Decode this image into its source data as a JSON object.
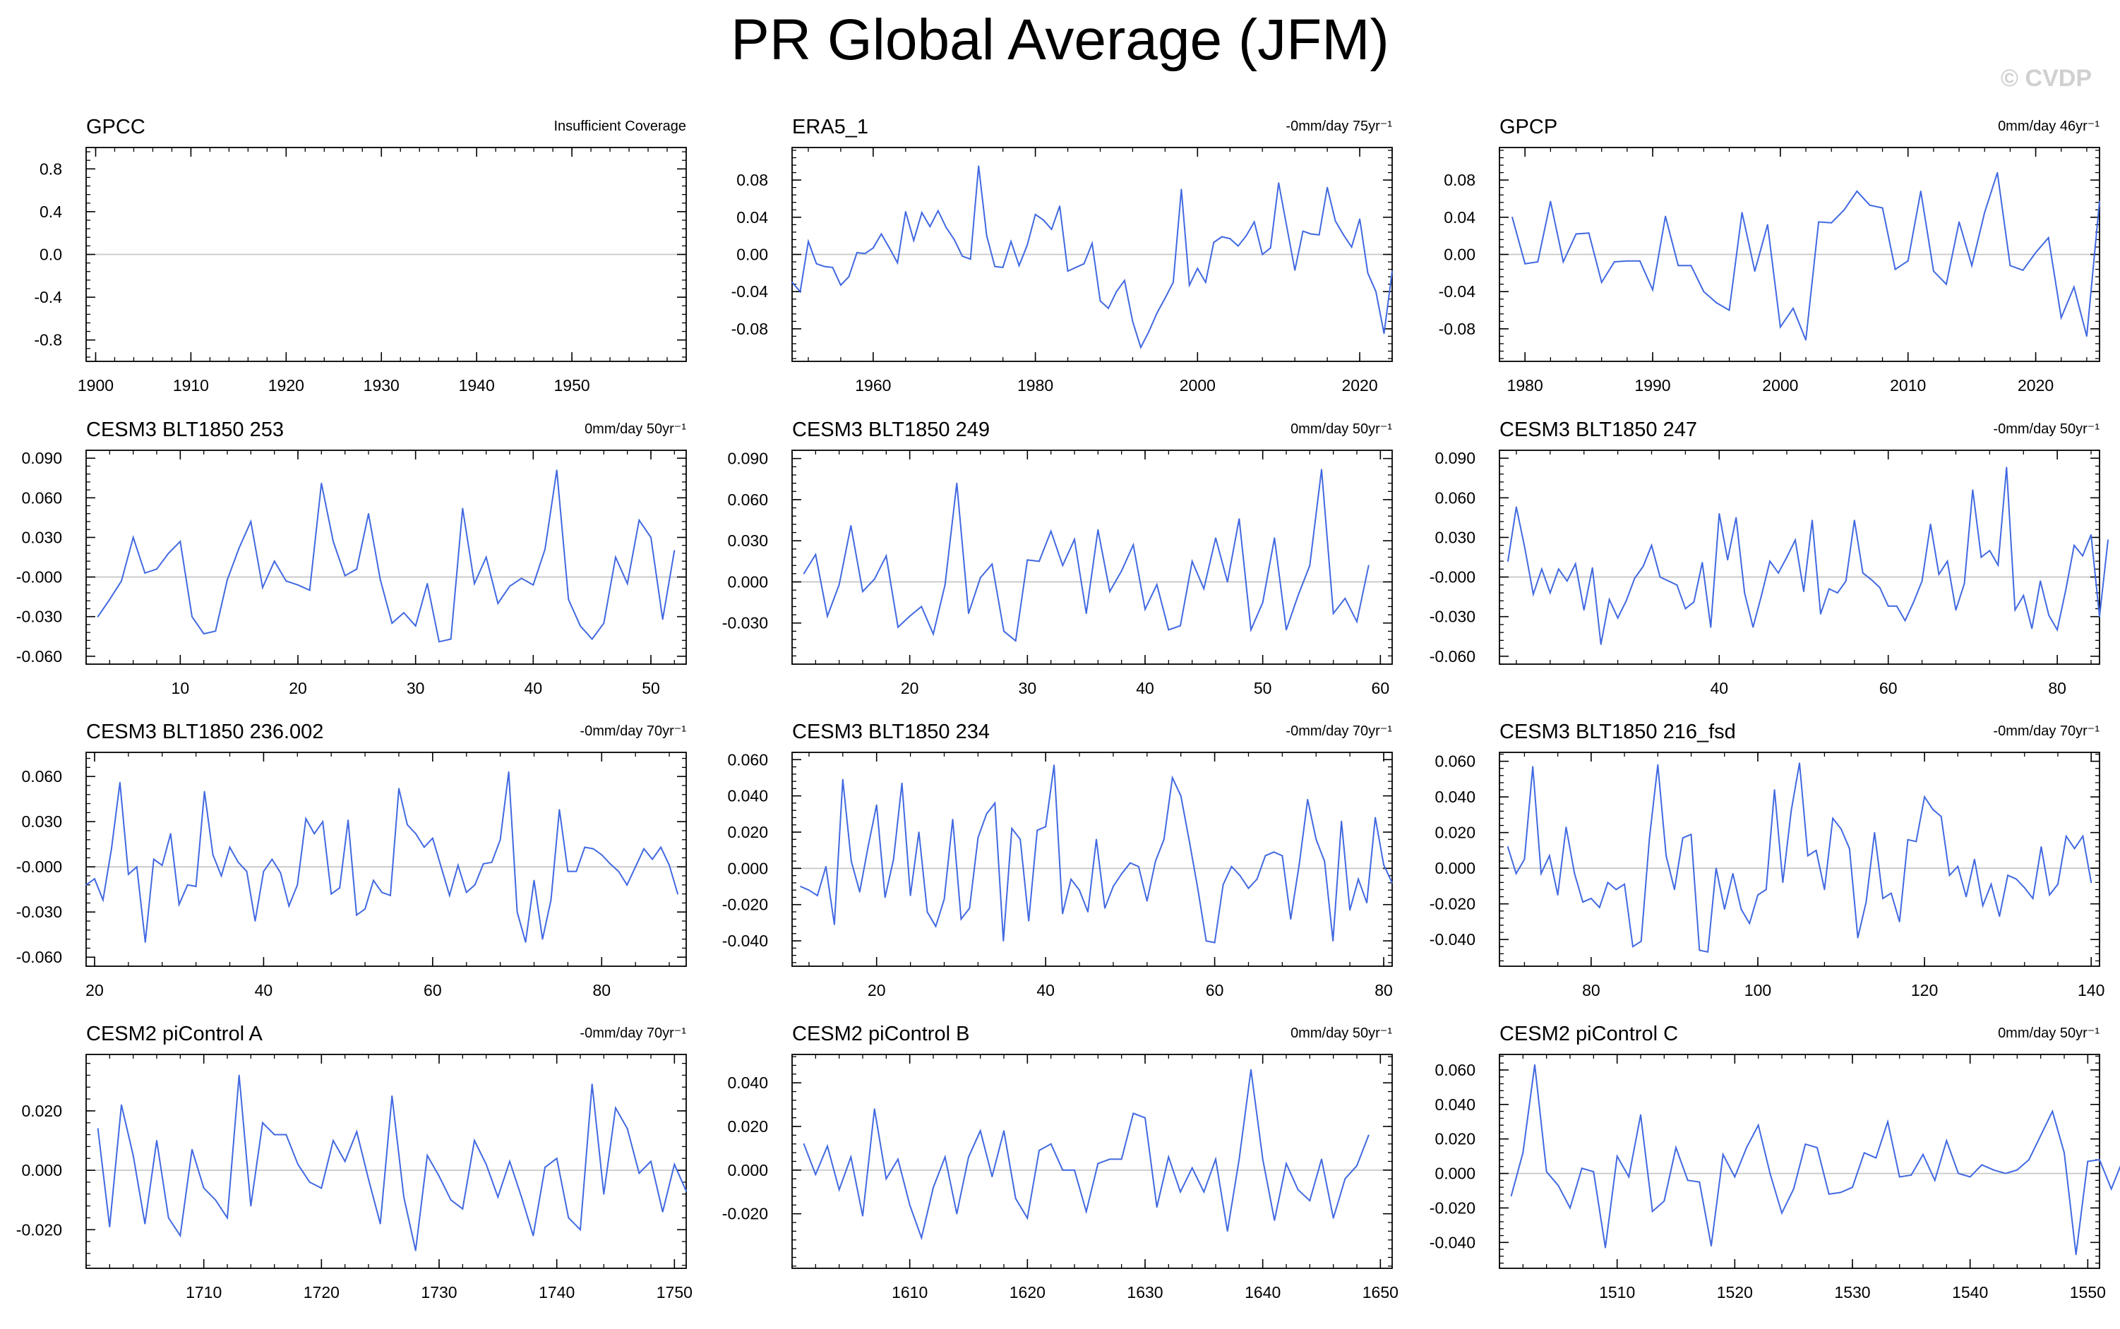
{
  "title": "PR Global Average (JFM)",
  "watermark": "© CVDP",
  "line_color": "#4169e1",
  "chart_data": [
    {
      "type": "line",
      "name": "GPCC",
      "trend": "Insufficient Coverage",
      "xlim": [
        1899,
        1962
      ],
      "xticks": [
        1900,
        1910,
        1920,
        1930,
        1940,
        1950
      ],
      "ylim": [
        -1,
        1
      ],
      "yticks": [
        -0.8,
        -0.4,
        0.0,
        0.4,
        0.8
      ],
      "ytick_labels": [
        "-0.8",
        "-0.4",
        "0.0",
        "0.4",
        "0.8"
      ],
      "x_start": 1900,
      "values": []
    },
    {
      "type": "line",
      "name": "ERA5_1",
      "trend": "-0mm/day 75yr⁻¹",
      "xlim": [
        1950,
        2024
      ],
      "xticks": [
        1960,
        1980,
        2000,
        2020
      ],
      "ylim": [
        -0.115,
        0.115
      ],
      "yticks": [
        -0.08,
        -0.04,
        0.0,
        0.04,
        0.08
      ],
      "ytick_labels": [
        "-0.08",
        "-0.04",
        "0.00",
        "0.04",
        "0.08"
      ],
      "x_start": 1950,
      "values": [
        -0.03,
        -0.04,
        0.014,
        -0.01,
        -0.013,
        -0.014,
        -0.033,
        -0.024,
        0.002,
        0.001,
        0.007,
        0.022,
        0.007,
        -0.009,
        0.046,
        0.015,
        0.045,
        0.03,
        0.047,
        0.029,
        0.016,
        -0.002,
        -0.005,
        0.095,
        0.02,
        -0.013,
        -0.014,
        0.014,
        -0.012,
        0.01,
        0.043,
        0.037,
        0.027,
        0.052,
        -0.018,
        -0.014,
        -0.01,
        0.012,
        -0.05,
        -0.058,
        -0.04,
        -0.028,
        -0.072,
        -0.1,
        -0.083,
        -0.063,
        -0.047,
        -0.03,
        0.07,
        -0.033,
        -0.015,
        -0.03,
        0.013,
        0.019,
        0.017,
        0.009,
        0.02,
        0.035,
        0.0,
        0.007,
        0.077,
        0.03,
        -0.017,
        0.025,
        0.022,
        0.021,
        0.072,
        0.036,
        0.021,
        0.008,
        0.038,
        -0.02,
        -0.04,
        -0.085,
        -0.018
      ]
    },
    {
      "type": "line",
      "name": "GPCP",
      "trend": "0mm/day 46yr⁻¹",
      "xlim": [
        1978,
        2025
      ],
      "xticks": [
        1980,
        1990,
        2000,
        2010,
        2020
      ],
      "ylim": [
        -0.115,
        0.115
      ],
      "yticks": [
        -0.08,
        -0.04,
        0.0,
        0.04,
        0.08
      ],
      "ytick_labels": [
        "-0.08",
        "-0.04",
        "0.00",
        "0.04",
        "0.08"
      ],
      "x_start": 1979,
      "values": [
        0.04,
        -0.01,
        -0.008,
        0.057,
        -0.008,
        0.022,
        0.023,
        -0.03,
        -0.008,
        -0.007,
        -0.007,
        -0.038,
        0.041,
        -0.012,
        -0.012,
        -0.04,
        -0.052,
        -0.06,
        0.045,
        -0.018,
        0.032,
        -0.078,
        -0.058,
        -0.092,
        0.035,
        0.034,
        0.048,
        0.068,
        0.053,
        0.05,
        -0.016,
        -0.007,
        0.068,
        -0.018,
        -0.032,
        0.035,
        -0.012,
        0.045,
        0.088,
        -0.012,
        -0.017,
        0.002,
        0.018,
        -0.068,
        -0.035,
        -0.088,
        0.057
      ]
    },
    {
      "type": "line",
      "name": "CESM3 BLT1850 253",
      "trend": "0mm/day 50yr⁻¹",
      "xlim": [
        2,
        53
      ],
      "xticks": [
        10,
        20,
        30,
        40,
        50
      ],
      "ylim": [
        -0.066,
        0.096
      ],
      "yticks": [
        -0.06,
        -0.03,
        0.0,
        0.03,
        0.06,
        0.09
      ],
      "ytick_labels": [
        "-0.060",
        "-0.030",
        "-0.000",
        "0.030",
        "0.060",
        "0.090"
      ],
      "x_start": 3,
      "values": [
        -0.03,
        -0.017,
        -0.003,
        0.03,
        0.003,
        0.006,
        0.018,
        0.027,
        -0.03,
        -0.043,
        -0.041,
        -0.002,
        0.022,
        0.042,
        -0.008,
        0.012,
        -0.003,
        -0.006,
        -0.01,
        0.071,
        0.027,
        0.001,
        0.006,
        0.048,
        -0.002,
        -0.035,
        -0.027,
        -0.037,
        -0.005,
        -0.049,
        -0.047,
        0.052,
        -0.005,
        0.015,
        -0.02,
        -0.007,
        -0.001,
        -0.006,
        0.021,
        0.081,
        -0.017,
        -0.037,
        -0.047,
        -0.035,
        0.015,
        -0.005,
        0.043,
        0.03,
        -0.032,
        0.02
      ]
    },
    {
      "type": "line",
      "name": "CESM3 BLT1850 249",
      "trend": "0mm/day 50yr⁻¹",
      "xlim": [
        10,
        61
      ],
      "xticks": [
        20,
        30,
        40,
        50,
        60
      ],
      "ylim": [
        -0.06,
        0.096
      ],
      "yticks": [
        -0.03,
        0.0,
        0.03,
        0.06,
        0.09
      ],
      "ytick_labels": [
        "-0.030",
        "0.000",
        "0.030",
        "0.060",
        "0.090"
      ],
      "x_start": 11,
      "values": [
        0.006,
        0.02,
        -0.025,
        -0.002,
        0.041,
        -0.007,
        0.002,
        0.019,
        -0.033,
        -0.025,
        -0.018,
        -0.038,
        -0.002,
        0.072,
        -0.023,
        0.003,
        0.013,
        -0.036,
        -0.043,
        0.016,
        0.015,
        0.037,
        0.012,
        0.031,
        -0.023,
        0.038,
        -0.007,
        0.008,
        0.027,
        -0.02,
        -0.002,
        -0.035,
        -0.032,
        0.015,
        -0.005,
        0.032,
        0.0,
        0.046,
        -0.035,
        -0.015,
        0.032,
        -0.035,
        -0.01,
        0.012,
        0.082,
        -0.023,
        -0.012,
        -0.029,
        0.012
      ]
    },
    {
      "type": "line",
      "name": "CESM3 BLT1850 247",
      "trend": "-0mm/day 50yr⁻¹",
      "xlim": [
        14,
        85
      ],
      "xticks": [
        40,
        60,
        80
      ],
      "ylim": [
        -0.066,
        0.096
      ],
      "yticks": [
        -0.06,
        -0.03,
        0.0,
        0.03,
        0.06,
        0.09
      ],
      "ytick_labels": [
        "-0.060",
        "-0.030",
        "-0.000",
        "0.030",
        "0.060",
        "0.090"
      ],
      "x_start": 15,
      "values": [
        0.012,
        0.053,
        0.022,
        -0.013,
        0.006,
        -0.012,
        0.006,
        -0.003,
        0.01,
        -0.025,
        0.007,
        -0.051,
        -0.017,
        -0.031,
        -0.018,
        -0.001,
        0.008,
        0.024,
        0.0,
        -0.003,
        -0.006,
        -0.024,
        -0.019,
        0.011,
        -0.038,
        0.048,
        0.013,
        0.045,
        -0.012,
        -0.038,
        -0.014,
        0.012,
        0.003,
        0.015,
        0.028,
        -0.011,
        0.043,
        -0.028,
        -0.009,
        -0.012,
        -0.003,
        0.043,
        0.003,
        -0.002,
        -0.008,
        -0.022,
        -0.022,
        -0.033,
        -0.019,
        -0.003,
        0.04,
        0.002,
        0.012,
        -0.025,
        -0.005,
        0.066,
        0.015,
        0.02,
        0.009,
        0.083,
        -0.025,
        -0.014,
        -0.039,
        -0.003,
        -0.029,
        -0.04,
        -0.01,
        0.024,
        0.016,
        0.032,
        -0.03,
        0.028
      ]
    },
    {
      "type": "line",
      "name": "CESM3 BLT1850 236.002",
      "trend": "-0mm/day 70yr⁻¹",
      "xlim": [
        19,
        90
      ],
      "xticks": [
        20,
        40,
        60,
        80
      ],
      "ylim": [
        -0.066,
        0.076
      ],
      "yticks": [
        -0.06,
        -0.03,
        0.0,
        0.03,
        0.06
      ],
      "ytick_labels": [
        "-0.060",
        "-0.030",
        "-0.000",
        "0.030",
        "0.060"
      ],
      "x_start": 19,
      "values": [
        -0.012,
        -0.008,
        -0.022,
        0.012,
        0.056,
        -0.005,
        0.0,
        -0.05,
        0.005,
        0.001,
        0.022,
        -0.025,
        -0.012,
        -0.013,
        0.05,
        0.008,
        -0.006,
        0.013,
        0.003,
        -0.003,
        -0.036,
        -0.003,
        0.005,
        -0.004,
        -0.026,
        -0.012,
        0.032,
        0.022,
        0.03,
        -0.018,
        -0.014,
        0.031,
        -0.032,
        -0.028,
        -0.009,
        -0.017,
        -0.019,
        0.052,
        0.028,
        0.022,
        0.013,
        0.019,
        0.0,
        -0.019,
        0.001,
        -0.017,
        -0.012,
        0.002,
        0.003,
        0.018,
        0.063,
        -0.03,
        -0.05,
        -0.009,
        -0.048,
        -0.022,
        0.038,
        -0.003,
        -0.003,
        0.013,
        0.012,
        0.008,
        0.002,
        -0.003,
        -0.012,
        0.0,
        0.012,
        0.005,
        0.013,
        0.001,
        -0.018
      ]
    },
    {
      "type": "line",
      "name": "CESM3 BLT1850 234",
      "trend": "-0mm/day 70yr⁻¹",
      "xlim": [
        10,
        81
      ],
      "xticks": [
        20,
        40,
        60,
        80
      ],
      "ylim": [
        -0.054,
        0.064
      ],
      "yticks": [
        -0.04,
        -0.02,
        0.0,
        0.02,
        0.04,
        0.06
      ],
      "ytick_labels": [
        "-0.040",
        "-0.020",
        "0.000",
        "0.020",
        "0.040",
        "0.060"
      ],
      "x_start": 11,
      "values": [
        -0.01,
        -0.012,
        -0.015,
        0.001,
        -0.031,
        0.049,
        0.004,
        -0.013,
        0.012,
        0.035,
        -0.016,
        0.005,
        0.047,
        -0.015,
        0.02,
        -0.024,
        -0.032,
        -0.017,
        0.027,
        -0.028,
        -0.022,
        0.017,
        0.03,
        0.036,
        -0.04,
        0.022,
        0.016,
        -0.029,
        0.021,
        0.023,
        0.057,
        -0.025,
        -0.006,
        -0.012,
        -0.024,
        0.016,
        -0.022,
        -0.01,
        -0.003,
        0.003,
        0.001,
        -0.018,
        0.004,
        0.016,
        0.05,
        0.04,
        0.015,
        -0.011,
        -0.04,
        -0.041,
        -0.009,
        0.001,
        -0.004,
        -0.011,
        -0.006,
        0.007,
        0.009,
        0.007,
        -0.028,
        0.002,
        0.038,
        0.016,
        0.004,
        -0.04,
        0.026,
        -0.023,
        -0.006,
        -0.019,
        0.028,
        0.002,
        -0.008
      ]
    },
    {
      "type": "line",
      "name": "CESM3 BLT1850 216_fsd",
      "trend": "-0mm/day 70yr⁻¹",
      "xlim": [
        69,
        141
      ],
      "xticks": [
        80,
        100,
        120,
        140
      ],
      "ylim": [
        -0.055,
        0.065
      ],
      "yticks": [
        -0.04,
        -0.02,
        0.0,
        0.02,
        0.04,
        0.06
      ],
      "ytick_labels": [
        "-0.040",
        "-0.020",
        "0.000",
        "0.020",
        "0.040",
        "0.060"
      ],
      "x_start": 70,
      "values": [
        0.012,
        -0.003,
        0.005,
        0.057,
        -0.003,
        0.007,
        -0.015,
        0.023,
        -0.003,
        -0.019,
        -0.017,
        -0.022,
        -0.008,
        -0.012,
        -0.009,
        -0.044,
        -0.041,
        0.017,
        0.058,
        0.007,
        -0.012,
        0.017,
        0.019,
        -0.046,
        -0.047,
        0.0,
        -0.023,
        -0.003,
        -0.023,
        -0.031,
        -0.015,
        -0.012,
        0.044,
        -0.008,
        0.032,
        0.059,
        0.007,
        0.01,
        -0.012,
        0.028,
        0.022,
        0.011,
        -0.039,
        -0.019,
        0.02,
        -0.017,
        -0.014,
        -0.03,
        0.016,
        0.015,
        0.04,
        0.033,
        0.029,
        -0.004,
        0.001,
        -0.016,
        0.005,
        -0.021,
        -0.009,
        -0.027,
        -0.004,
        -0.006,
        -0.011,
        -0.017,
        0.012,
        -0.015,
        -0.009,
        0.018,
        0.011,
        0.018,
        -0.008
      ]
    },
    {
      "type": "line",
      "name": "CESM2 piControl A",
      "trend": "-0mm/day 70yr⁻¹",
      "xlim": [
        1700,
        1751
      ],
      "xticks": [
        1710,
        1720,
        1730,
        1740,
        1750
      ],
      "ylim": [
        -0.033,
        0.039
      ],
      "yticks": [
        -0.02,
        0.0,
        0.02
      ],
      "ytick_labels": [
        "-0.020",
        "0.000",
        "0.020"
      ],
      "x_start": 1701,
      "values": [
        0.014,
        -0.019,
        0.022,
        0.005,
        -0.018,
        0.01,
        -0.016,
        -0.022,
        0.007,
        -0.006,
        -0.01,
        -0.016,
        0.032,
        -0.012,
        0.016,
        0.012,
        0.012,
        0.002,
        -0.004,
        -0.006,
        0.01,
        0.003,
        0.013,
        -0.003,
        -0.018,
        0.025,
        -0.009,
        -0.027,
        0.005,
        -0.002,
        -0.01,
        -0.013,
        0.01,
        0.002,
        -0.009,
        0.003,
        -0.009,
        -0.022,
        0.001,
        0.004,
        -0.016,
        -0.02,
        0.029,
        -0.008,
        0.021,
        0.014,
        -0.001,
        0.003,
        -0.014,
        0.002,
        -0.007
      ]
    },
    {
      "type": "line",
      "name": "CESM2 piControl B",
      "trend": "0mm/day 50yr⁻¹",
      "xlim": [
        1600,
        1651
      ],
      "xticks": [
        1610,
        1620,
        1630,
        1640,
        1650
      ],
      "ylim": [
        -0.045,
        0.053
      ],
      "yticks": [
        -0.02,
        0.0,
        0.02,
        0.04
      ],
      "ytick_labels": [
        "-0.020",
        "0.000",
        "0.020",
        "0.040"
      ],
      "x_start": 1601,
      "values": [
        0.012,
        -0.002,
        0.011,
        -0.009,
        0.006,
        -0.021,
        0.028,
        -0.004,
        0.005,
        -0.016,
        -0.031,
        -0.008,
        0.006,
        -0.02,
        0.006,
        0.018,
        -0.003,
        0.018,
        -0.013,
        -0.022,
        0.009,
        0.012,
        0.0,
        0.0,
        -0.019,
        0.003,
        0.005,
        0.005,
        0.026,
        0.024,
        -0.017,
        0.006,
        -0.01,
        0.001,
        -0.01,
        0.005,
        -0.028,
        0.005,
        0.046,
        0.005,
        -0.023,
        0.003,
        -0.009,
        -0.014,
        0.005,
        -0.022,
        -0.004,
        0.002,
        0.016
      ]
    },
    {
      "type": "line",
      "name": "CESM2 piControl C",
      "trend": "0mm/day 50yr⁻¹",
      "xlim": [
        1500,
        1551
      ],
      "xticks": [
        1510,
        1520,
        1530,
        1540,
        1550
      ],
      "ylim": [
        -0.055,
        0.069
      ],
      "yticks": [
        -0.04,
        -0.02,
        0.0,
        0.02,
        0.04,
        0.06
      ],
      "ytick_labels": [
        "-0.040",
        "-0.020",
        "0.000",
        "0.020",
        "0.040",
        "0.060"
      ],
      "x_start": 1501,
      "values": [
        -0.013,
        0.012,
        0.063,
        0.001,
        -0.007,
        -0.02,
        0.003,
        0.001,
        -0.043,
        0.01,
        -0.002,
        0.034,
        -0.022,
        -0.016,
        0.015,
        -0.004,
        -0.005,
        -0.042,
        0.011,
        -0.002,
        0.015,
        0.028,
        0.0,
        -0.023,
        -0.009,
        0.017,
        0.015,
        -0.012,
        -0.011,
        -0.008,
        0.012,
        0.009,
        0.03,
        -0.002,
        -0.001,
        0.011,
        -0.004,
        0.019,
        0.0,
        -0.002,
        0.005,
        0.002,
        0.0,
        0.002,
        0.008,
        0.022,
        0.036,
        0.012,
        -0.047,
        0.007,
        0.008,
        -0.009,
        0.008,
        -0.031
      ]
    }
  ]
}
